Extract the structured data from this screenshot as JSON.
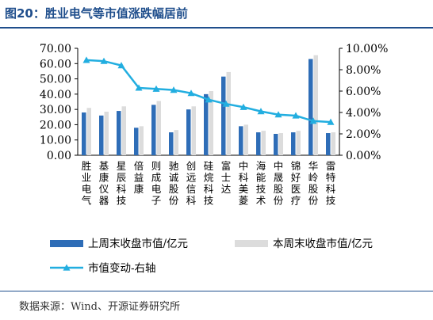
{
  "title": "图20：胜业电气等市值涨跌幅居前",
  "source": "数据来源：Wind、开源证券研究所",
  "colors": {
    "title": "#1f4e8c",
    "prev_bar": "#2e6db7",
    "curr_bar": "#dcdcdc",
    "line": "#22aee0"
  },
  "chart_data": {
    "type": "bar+line",
    "categories": [
      "胜业电气",
      "基康仪器",
      "星辰科技",
      "倍益康",
      "则成电子",
      "驰诚股份",
      "创远信科",
      "硅烷科技",
      "富士达",
      "中科美菱",
      "海能技术",
      "中晟股份",
      "锦好医疗",
      "华岭股份",
      "雷特科技"
    ],
    "series": [
      {
        "name": "上周末收盘市值/亿元",
        "kind": "bar",
        "axis": "left",
        "values": [
          28,
          26,
          29,
          18,
          33,
          15,
          30,
          40,
          51.5,
          19,
          15,
          14,
          15,
          63,
          14.5
        ]
      },
      {
        "name": "本周末收盘市值/亿元",
        "kind": "bar",
        "axis": "left",
        "values": [
          31,
          28.5,
          32,
          19,
          35.5,
          16.5,
          32,
          42,
          54.5,
          20,
          16,
          14.5,
          16,
          65.5,
          15
        ]
      },
      {
        "name": "市值变动-右轴",
        "kind": "line",
        "axis": "right",
        "values": [
          8.9,
          8.8,
          8.4,
          6.3,
          6.2,
          6.1,
          5.8,
          5.2,
          4.8,
          4.5,
          4.1,
          3.8,
          3.7,
          3.2,
          3.1
        ]
      }
    ],
    "y_left": {
      "min": 0,
      "max": 70,
      "step": 10,
      "tick_labels": [
        "0.00",
        "10.00",
        "20.00",
        "30.00",
        "40.00",
        "50.00",
        "60.00",
        "70.00"
      ]
    },
    "y_right": {
      "min": 0,
      "max": 10,
      "step": 2,
      "tick_labels": [
        "0.00%",
        "2.00%",
        "4.00%",
        "6.00%",
        "8.00%",
        "10.00%"
      ]
    },
    "grid": false,
    "legend_position": "bottom"
  }
}
